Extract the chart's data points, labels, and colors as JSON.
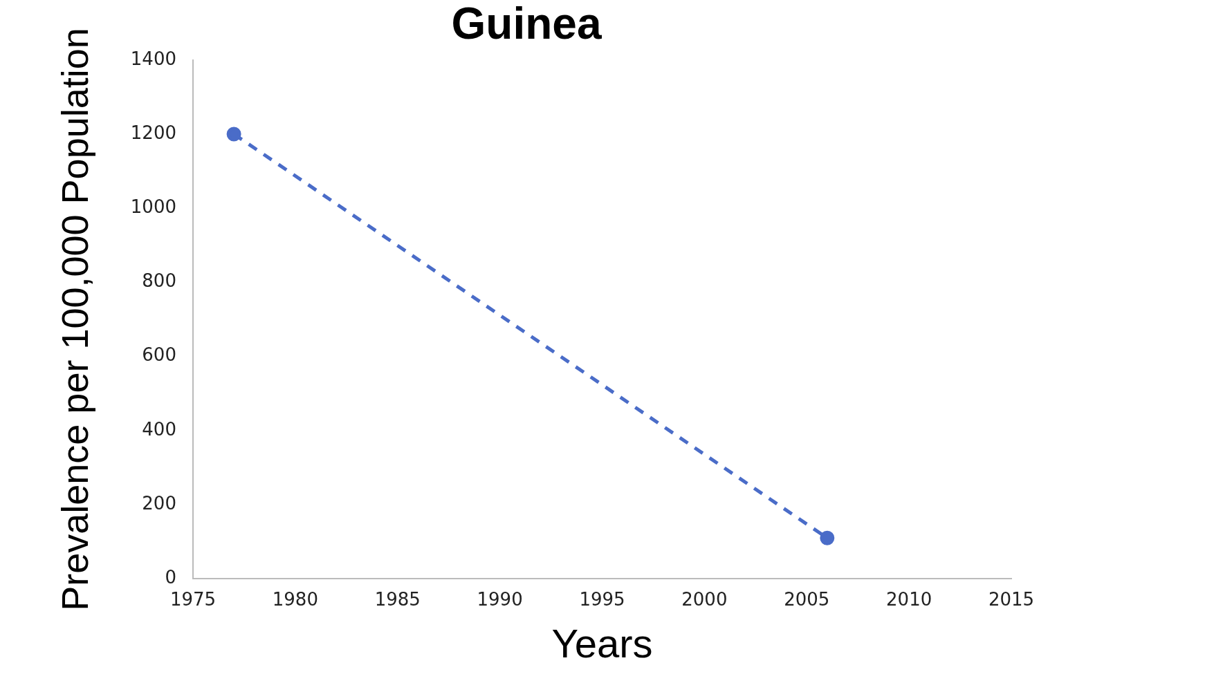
{
  "chart_data": {
    "type": "line",
    "title": "Guinea",
    "xlabel": "Years",
    "ylabel": "Prevalence per 100,000 Population",
    "series": [
      {
        "color": "#4a6cc8",
        "x": [
          1977,
          2006
        ],
        "values": [
          1200,
          110
        ]
      }
    ],
    "xlim": [
      1975,
      2015
    ],
    "xticks": [
      1975,
      1980,
      1985,
      1990,
      1995,
      2000,
      2005,
      2010,
      2015
    ],
    "ylim": [
      0,
      1400
    ],
    "yticks": [
      0,
      200,
      400,
      600,
      800,
      1000,
      1200,
      1400
    ],
    "grid": false,
    "legend": false,
    "marker": "circle",
    "line_style": "dashed"
  }
}
